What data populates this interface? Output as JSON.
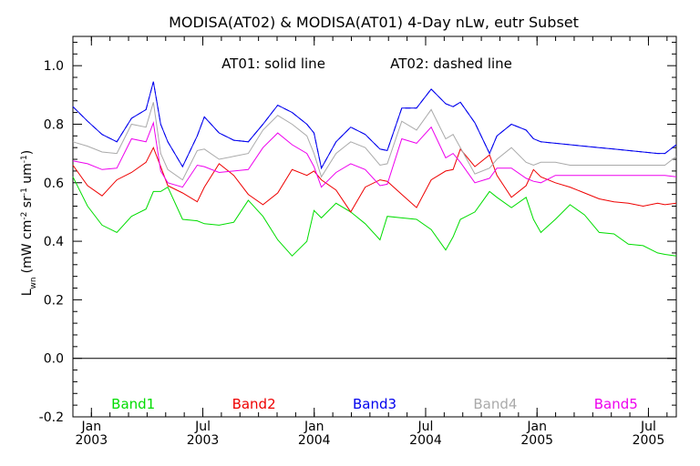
{
  "chart_data": {
    "type": "line",
    "title": "MODISA(AT02) & MODISA(AT01) 4-Day nLw, eutr Subset",
    "annotation_solid": "AT01: solid line",
    "annotation_dashed": "AT02: dashed line",
    "ylabel": {
      "base": "L",
      "base_sub": "wn",
      "units_prefix": "(mW cm",
      "sup1": "-2",
      "mid1": " sr",
      "sup2": "-1",
      "mid2": " um",
      "sup3": "-1",
      "suffix": ")"
    },
    "xlim": [
      2002.917,
      2005.625
    ],
    "ylim": [
      -0.2,
      1.1
    ],
    "yticks": [
      -0.2,
      0.0,
      0.2,
      0.4,
      0.6,
      0.8,
      1.0
    ],
    "ytick_labels": [
      "-0.2",
      "0.0",
      "0.2",
      "0.4",
      "0.6",
      "0.8",
      "1.0"
    ],
    "xticks": [
      {
        "value": 2003.0,
        "month": "Jan",
        "year": "2003"
      },
      {
        "value": 2003.5,
        "month": "Jul",
        "year": "2003"
      },
      {
        "value": 2004.0,
        "month": "Jan",
        "year": "2004"
      },
      {
        "value": 2004.5,
        "month": "Jul",
        "year": "2004"
      },
      {
        "value": 2005.0,
        "month": "Jan",
        "year": "2005"
      },
      {
        "value": 2005.5,
        "month": "Jul",
        "year": "2005"
      }
    ],
    "zero_line": 0.0,
    "grid": false,
    "legend_placement": "bottom",
    "x": [
      2002.917,
      2002.983,
      2003.048,
      2003.114,
      2003.18,
      2003.245,
      2003.278,
      2003.311,
      2003.343,
      2003.409,
      2003.475,
      2003.507,
      2003.573,
      2003.639,
      2003.704,
      2003.77,
      2003.836,
      2003.901,
      2003.967,
      2003.999,
      2004.032,
      2004.098,
      2004.164,
      2004.229,
      2004.295,
      2004.328,
      2004.393,
      2004.459,
      2004.525,
      2004.59,
      2004.623,
      2004.656,
      2004.721,
      2004.787,
      2004.82,
      2004.885,
      2004.951,
      2004.984,
      2005.017,
      2005.082,
      2005.148,
      2005.213,
      2005.279,
      2005.345,
      2005.41,
      2005.476,
      2005.541,
      2005.574,
      2005.625
    ],
    "series": [
      {
        "name": "Band1",
        "color": "#00dd00",
        "values": [
          0.62,
          0.52,
          0.455,
          0.43,
          0.485,
          0.51,
          0.57,
          0.57,
          0.585,
          0.475,
          0.47,
          0.46,
          0.455,
          0.465,
          0.54,
          0.485,
          0.405,
          0.35,
          0.4,
          0.505,
          0.48,
          0.53,
          0.5,
          0.46,
          0.405,
          0.485,
          0.48,
          0.475,
          0.44,
          0.37,
          0.415,
          0.475,
          0.5,
          0.57,
          0.55,
          0.515,
          0.55,
          0.475,
          0.43,
          0.475,
          0.525,
          0.49,
          0.43,
          0.425,
          0.39,
          0.385,
          0.36,
          0.355,
          0.35
        ]
      },
      {
        "name": "Band2",
        "color": "#ee0000",
        "values": [
          0.66,
          0.59,
          0.555,
          0.61,
          0.635,
          0.67,
          0.72,
          0.655,
          0.59,
          0.565,
          0.535,
          0.585,
          0.665,
          0.625,
          0.56,
          0.525,
          0.565,
          0.645,
          0.625,
          0.64,
          0.61,
          0.575,
          0.5,
          0.585,
          0.61,
          0.605,
          0.56,
          0.515,
          0.61,
          0.64,
          0.645,
          0.715,
          0.655,
          0.695,
          0.625,
          0.55,
          0.59,
          0.645,
          0.62,
          0.6,
          0.585,
          0.565,
          0.545,
          0.535,
          0.53,
          0.52,
          0.53,
          0.525,
          0.53
        ]
      },
      {
        "name": "Band3",
        "color": "#0000ee",
        "values": [
          0.86,
          0.81,
          0.765,
          0.74,
          0.82,
          0.85,
          0.945,
          0.8,
          0.74,
          0.655,
          0.76,
          0.825,
          0.77,
          0.745,
          0.74,
          0.8,
          0.865,
          0.84,
          0.8,
          0.77,
          0.65,
          0.74,
          0.79,
          0.765,
          0.715,
          0.71,
          0.855,
          0.855,
          0.92,
          0.87,
          0.86,
          0.875,
          0.805,
          0.7,
          0.76,
          0.8,
          0.78,
          0.75,
          0.74,
          0.735,
          0.73,
          0.725,
          0.72,
          0.715,
          0.71,
          0.705,
          0.7,
          0.7,
          0.73
        ]
      },
      {
        "name": "Band4",
        "color": "#aaaaaa",
        "values": [
          0.74,
          0.725,
          0.705,
          0.7,
          0.8,
          0.79,
          0.875,
          0.7,
          0.645,
          0.61,
          0.71,
          0.715,
          0.68,
          0.69,
          0.7,
          0.78,
          0.83,
          0.8,
          0.76,
          0.7,
          0.62,
          0.7,
          0.74,
          0.72,
          0.66,
          0.665,
          0.81,
          0.78,
          0.85,
          0.75,
          0.765,
          0.72,
          0.63,
          0.65,
          0.68,
          0.72,
          0.67,
          0.66,
          0.67,
          0.67,
          0.66,
          0.66,
          0.66,
          0.66,
          0.66,
          0.66,
          0.66,
          0.66,
          0.69
        ]
      },
      {
        "name": "Band5",
        "color": "#ee00ee",
        "values": [
          0.675,
          0.665,
          0.645,
          0.65,
          0.75,
          0.74,
          0.805,
          0.64,
          0.6,
          0.585,
          0.66,
          0.655,
          0.635,
          0.64,
          0.645,
          0.72,
          0.77,
          0.73,
          0.7,
          0.655,
          0.585,
          0.635,
          0.665,
          0.645,
          0.59,
          0.595,
          0.75,
          0.735,
          0.79,
          0.685,
          0.7,
          0.67,
          0.6,
          0.615,
          0.65,
          0.65,
          0.615,
          0.605,
          0.6,
          0.625,
          0.625,
          0.625,
          0.625,
          0.625,
          0.625,
          0.625,
          0.625,
          0.625,
          0.62
        ]
      }
    ],
    "dashed_series": [
      {
        "name": "Band3",
        "values": [
          0.86,
          0.81,
          0.765,
          0.74,
          0.82,
          0.85,
          0.945,
          0.8,
          0.74,
          0.655,
          0.76,
          0.825,
          0.77,
          0.745,
          0.74,
          0.8,
          0.865,
          0.84,
          0.8,
          0.77,
          0.65,
          0.74,
          0.79,
          0.765,
          0.715,
          0.71,
          0.855,
          0.855,
          0.92,
          0.87,
          0.86,
          0.875,
          0.805,
          0.7,
          0.76,
          0.8,
          0.78,
          0.75,
          0.74,
          0.735,
          0.73,
          0.725,
          0.72,
          0.715,
          0.71,
          0.705,
          0.7,
          0.7,
          0.73
        ]
      }
    ]
  }
}
